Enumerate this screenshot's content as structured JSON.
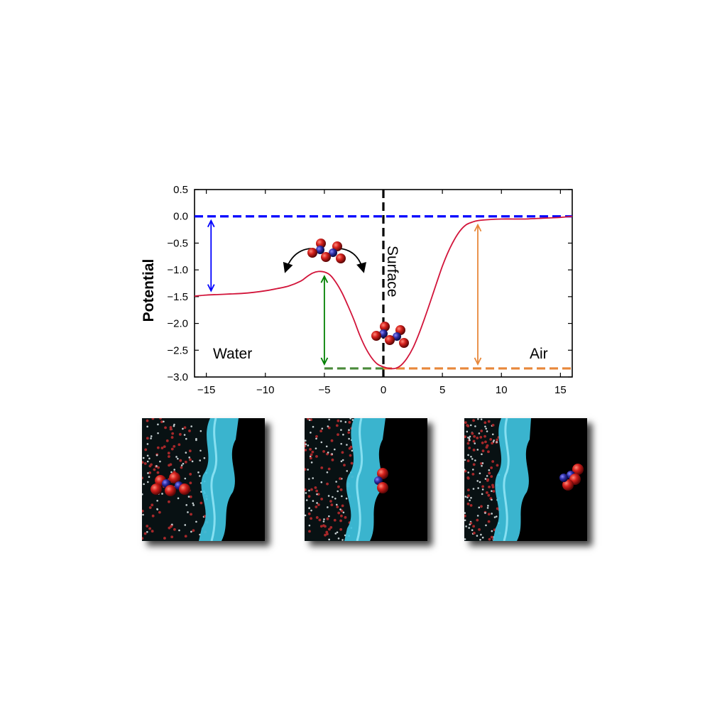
{
  "chart_data": {
    "type": "line",
    "title": "",
    "xlabel": "",
    "ylabel": "Potential",
    "xlim": [
      -16,
      16
    ],
    "ylim": [
      -3.0,
      0.5
    ],
    "xticks": [
      -15,
      -10,
      -5,
      0,
      5,
      10,
      15
    ],
    "xtick_labels": [
      "−15",
      "−10",
      "−5",
      "0",
      "5",
      "10",
      "15"
    ],
    "yticks": [
      0.5,
      0.0,
      -0.5,
      -1.0,
      -1.5,
      -2.0,
      -2.5,
      -3.0
    ],
    "ytick_labels": [
      "0.5",
      "0.0",
      "−0.5",
      "−1.0",
      "−1.5",
      "−2.0",
      "−2.5",
      "−3.0"
    ],
    "grid": false,
    "series": [
      {
        "x": [
          -16,
          -15,
          -14,
          -13,
          -12,
          -11,
          -10,
          -9,
          -8,
          -7,
          -6.5,
          -6,
          -5.5,
          -5,
          -4.5,
          -4,
          -3.5,
          -3,
          -2.5,
          -2,
          -1.5,
          -1,
          -0.5,
          0,
          0.5,
          1,
          1.5,
          2,
          2.5,
          3,
          3.5,
          4,
          4.5,
          5,
          5.5,
          6,
          6.5,
          7,
          7.5,
          8,
          9,
          10,
          11,
          12,
          13,
          14,
          15,
          16
        ],
        "y": [
          -1.49,
          -1.47,
          -1.46,
          -1.45,
          -1.44,
          -1.42,
          -1.39,
          -1.35,
          -1.3,
          -1.21,
          -1.13,
          -1.06,
          -1.03,
          -1.04,
          -1.1,
          -1.24,
          -1.43,
          -1.67,
          -1.93,
          -2.22,
          -2.46,
          -2.64,
          -2.76,
          -2.81,
          -2.84,
          -2.84,
          -2.78,
          -2.65,
          -2.46,
          -2.2,
          -1.9,
          -1.58,
          -1.25,
          -0.93,
          -0.66,
          -0.44,
          -0.27,
          -0.16,
          -0.11,
          -0.08,
          -0.06,
          -0.05,
          -0.05,
          -0.05,
          -0.04,
          -0.03,
          -0.02,
          0.0
        ],
        "color": "#d2143a"
      }
    ],
    "reference_lines": [
      {
        "orientation": "horizontal",
        "y": 0.0,
        "x_from": -16,
        "x_to": 16,
        "color": "#0000ff",
        "style": "dashed"
      },
      {
        "orientation": "vertical",
        "x": 0.0,
        "color": "#000000",
        "style": "dashed"
      },
      {
        "orientation": "horizontal",
        "y": -2.84,
        "x_from": -5,
        "x_to": 0,
        "color": "#4a8a3a",
        "style": "dashed"
      },
      {
        "orientation": "horizontal",
        "y": -2.84,
        "x_from": 0,
        "x_to": 16,
        "color": "#e8873a",
        "style": "dashed"
      }
    ],
    "double_arrows": [
      {
        "x": -14.6,
        "y_from": 0.0,
        "y_to": -1.47,
        "color": "#0000ff"
      },
      {
        "x": -5.0,
        "y_from": -1.04,
        "y_to": -2.84,
        "color": "#008000"
      },
      {
        "x": 8.0,
        "y_from": -0.08,
        "y_to": -2.84,
        "color": "#e8873a"
      }
    ],
    "annotations": {
      "surface": "Surface",
      "water": "Water",
      "air": "Air"
    }
  },
  "colors": {
    "curve": "#d2143a",
    "blue": "#0000ff",
    "green": "#008000",
    "orange": "#e8873a",
    "molecule_oxygen": "#cc1a1a",
    "molecule_nitrogen": "#2a2a9a",
    "interface": "#4fd6ef"
  },
  "snapshots": [
    {
      "name": "water-side",
      "molecule_side": "water"
    },
    {
      "name": "interface",
      "molecule_side": "interface"
    },
    {
      "name": "air-side",
      "molecule_side": "air"
    }
  ]
}
